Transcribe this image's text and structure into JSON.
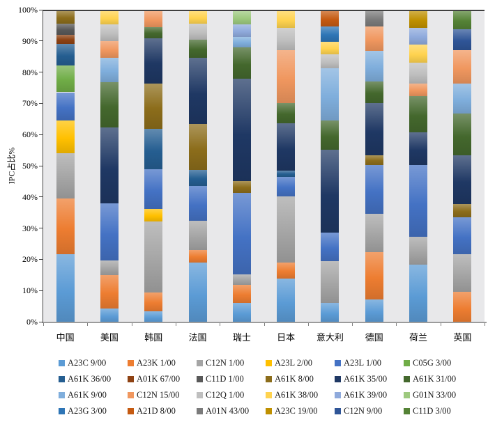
{
  "chart_data": {
    "type": "bar",
    "variant": "stacked-100-percent",
    "title": "",
    "xlabel": "",
    "ylabel": "IPC占比%",
    "ylim": [
      0,
      100
    ],
    "grid": false,
    "legend_position": "bottom",
    "yticks": [
      "0%",
      "10%",
      "20%",
      "30%",
      "40%",
      "50%",
      "60%",
      "70%",
      "80%",
      "90%",
      "100%"
    ],
    "categories": [
      "中国",
      "美国",
      "韩国",
      "法国",
      "瑞士",
      "日本",
      "意大利",
      "德国",
      "荷兰",
      "英国"
    ],
    "categories_en": [
      "china",
      "usa",
      "korea",
      "france",
      "switzerland",
      "japan",
      "italy",
      "germany",
      "netherlands",
      "uk"
    ],
    "series": [
      {
        "name": "A23C 9/00",
        "color": "#5B9BD5",
        "values": [
          22,
          4.6,
          3.9,
          19.4,
          6.4,
          14.2,
          6.4,
          7.5,
          18.7,
          0
        ]
      },
      {
        "name": "A23K 1/00",
        "color": "#ED7D31",
        "values": [
          18,
          10.8,
          5.9,
          4.1,
          5.9,
          5.2,
          0,
          15.3,
          0,
          10.1
        ]
      },
      {
        "name": "C12N 1/00",
        "color": "#A5A5A5",
        "values": [
          14.5,
          4.8,
          22.7,
          9.3,
          3.4,
          21.2,
          13.4,
          12.2,
          8.9,
          11.9
        ]
      },
      {
        "name": "A23L 2/00",
        "color": "#FFC000",
        "values": [
          10.5,
          0,
          4.1,
          0,
          0,
          0,
          0,
          0,
          0,
          0
        ]
      },
      {
        "name": "A23L 1/00",
        "color": "#4472C4",
        "values": [
          9,
          18.3,
          12.7,
          11.2,
          26,
          6.3,
          9.3,
          15.7,
          23.1,
          11.9
        ]
      },
      {
        "name": "C05G 3/00",
        "color": "#70AD47",
        "values": [
          8.5,
          0,
          0,
          0,
          0,
          0,
          0,
          0,
          0,
          0
        ]
      },
      {
        "name": "A61K 36/00",
        "color": "#255E91",
        "values": [
          7,
          0,
          13,
          5.2,
          0,
          1.9,
          0,
          0,
          0,
          0
        ]
      },
      {
        "name": "A01K 67/00",
        "color": "#8E4213",
        "values": [
          3,
          0,
          0,
          0,
          0,
          0,
          0,
          0,
          0,
          0
        ]
      },
      {
        "name": "C11D 1/00",
        "color": "#595959",
        "values": [
          3.5,
          0,
          0,
          0,
          0,
          0,
          0,
          0,
          0,
          0
        ]
      },
      {
        "name": "A61K 8/00",
        "color": "#8C6D1B",
        "values": [
          4,
          0,
          14.5,
          14.6,
          3.8,
          0,
          0,
          3,
          0,
          4.3
        ]
      },
      {
        "name": "A61K 35/00",
        "color": "#1F3864",
        "values": [
          0,
          24.3,
          14.5,
          21.3,
          32.8,
          15.3,
          26.5,
          16.8,
          10.5,
          15.5
        ]
      },
      {
        "name": "A61K 31/00",
        "color": "#44682D",
        "values": [
          0,
          14.4,
          3.5,
          5.8,
          10,
          6.4,
          9.3,
          7,
          11.5,
          13.4
        ]
      },
      {
        "name": "A61K 9/00",
        "color": "#7FAEDC",
        "values": [
          0,
          7.9,
          0,
          0,
          3.4,
          0,
          16.7,
          9.7,
          0,
          9.7
        ]
      },
      {
        "name": "C12N 15/00",
        "color": "#F0975F",
        "values": [
          0,
          5.4,
          5.2,
          0,
          0,
          17.1,
          0,
          7.8,
          4.1,
          10.8
        ]
      },
      {
        "name": "C12Q 1/00",
        "color": "#BFBFBF",
        "values": [
          0,
          5.3,
          0,
          5.1,
          0,
          7,
          4.5,
          0,
          6.7,
          0
        ]
      },
      {
        "name": "A61K 38/00",
        "color": "#FFD34F",
        "values": [
          0,
          4.2,
          0,
          4,
          0,
          5.4,
          4.1,
          0,
          5.9,
          0
        ]
      },
      {
        "name": "A61K 39/00",
        "color": "#8FAADC",
        "values": [
          0,
          0,
          0,
          0,
          4.1,
          0,
          0,
          0,
          5.2,
          0
        ]
      },
      {
        "name": "G01N 33/00",
        "color": "#9DC97E",
        "values": [
          0,
          0,
          0,
          0,
          4.2,
          0,
          0,
          0,
          0,
          0
        ]
      },
      {
        "name": "A23G 3/00",
        "color": "#2E75B6",
        "values": [
          0,
          0,
          0,
          0,
          0,
          0,
          4.8,
          0,
          0,
          0
        ]
      },
      {
        "name": "A21D 8/00",
        "color": "#C55A11",
        "values": [
          0,
          0,
          0,
          0,
          0,
          0,
          5,
          0,
          0,
          0
        ]
      },
      {
        "name": "A01N 43/00",
        "color": "#7B7B7B",
        "values": [
          0,
          0,
          0,
          0,
          0,
          0,
          0,
          5,
          0,
          0
        ]
      },
      {
        "name": "A23C 19/00",
        "color": "#BF9000",
        "values": [
          0,
          0,
          0,
          0,
          0,
          0,
          0,
          0,
          5.4,
          0
        ]
      },
      {
        "name": "C12N 9/00",
        "color": "#2F5597",
        "values": [
          0,
          0,
          0,
          0,
          0,
          0,
          0,
          0,
          0,
          6.7
        ]
      },
      {
        "name": "C11D 3/00",
        "color": "#548235",
        "values": [
          0,
          0,
          0,
          0,
          0,
          0,
          0,
          0,
          0,
          5.7
        ]
      }
    ]
  }
}
